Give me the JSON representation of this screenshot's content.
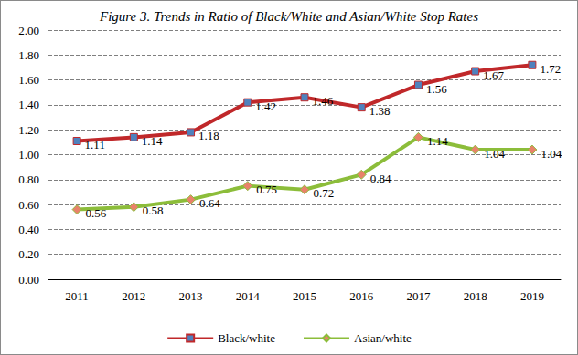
{
  "chart_data": {
    "type": "line",
    "title": "Figure 3. Trends in Ratio of Black/White and Asian/White Stop Rates",
    "categories": [
      "2011",
      "2012",
      "2013",
      "2014",
      "2015",
      "2016",
      "2017",
      "2018",
      "2019"
    ],
    "series": [
      {
        "name": "Black/white",
        "color": "#c0282a",
        "marker": "square",
        "values": [
          1.11,
          1.14,
          1.18,
          1.42,
          1.46,
          1.38,
          1.56,
          1.67,
          1.72
        ]
      },
      {
        "name": "Asian/white",
        "color": "#8cbd3a",
        "marker": "diamond",
        "values": [
          0.56,
          0.58,
          0.64,
          0.75,
          0.72,
          0.84,
          1.14,
          1.04,
          1.04
        ]
      }
    ],
    "ylim": [
      0,
      2
    ],
    "yticks": [
      {
        "value": 0,
        "label": "0.00"
      },
      {
        "value": 0.2,
        "label": "0.20"
      },
      {
        "value": 0.4,
        "label": "0.40"
      },
      {
        "value": 0.6,
        "label": "0.60"
      },
      {
        "value": 0.8,
        "label": "0.80"
      },
      {
        "value": 1,
        "label": "1.00"
      },
      {
        "value": 1.2,
        "label": "1.20"
      },
      {
        "value": 1.4,
        "label": "1.40"
      },
      {
        "value": 1.6,
        "label": "1.60"
      },
      {
        "value": 1.8,
        "label": "1.80"
      },
      {
        "value": 2,
        "label": "2.00"
      }
    ],
    "grid": true,
    "legend": "bottom",
    "data_labels": true
  }
}
